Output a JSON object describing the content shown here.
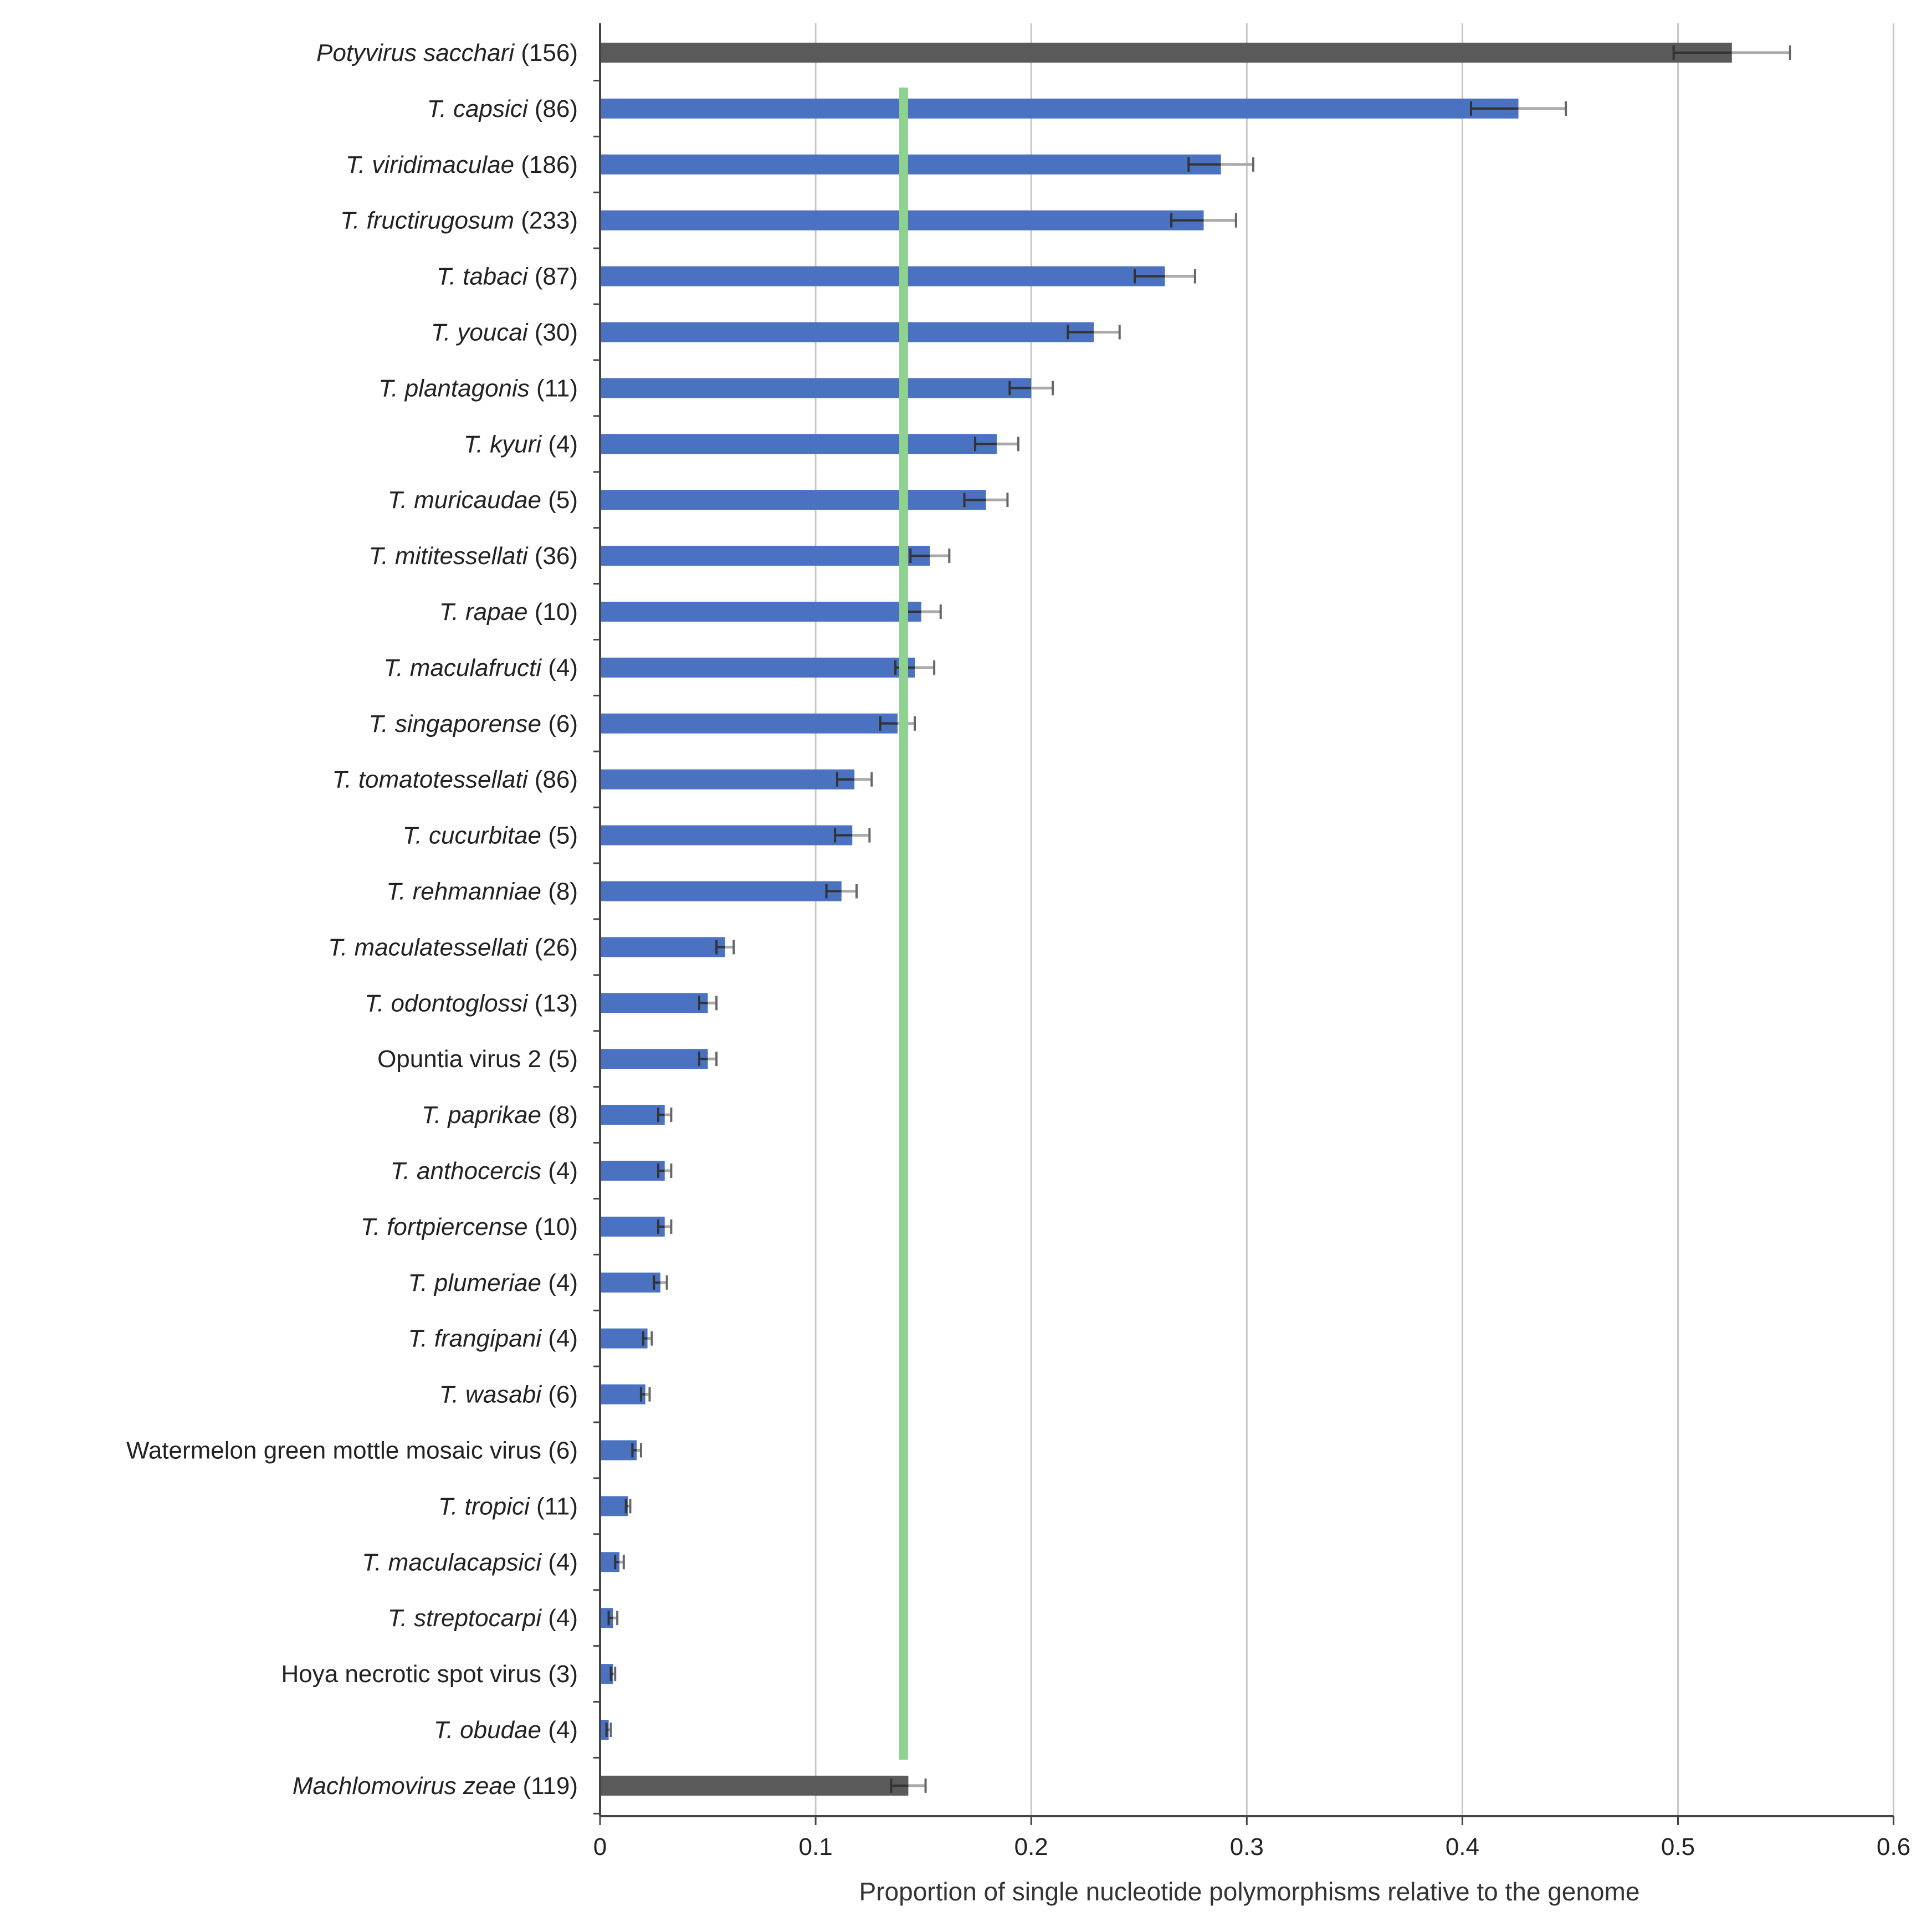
{
  "chart_data": {
    "type": "bar",
    "orientation": "horizontal",
    "xlabel": "Proportion of single nucleotide polymorphisms relative to the genome",
    "ylabel": "",
    "xlim": [
      0,
      0.6
    ],
    "xticks": [
      "0",
      "0.1",
      "0.2",
      "0.3",
      "0.4",
      "0.5",
      "0.6"
    ],
    "grid": "vertical",
    "reference_line": {
      "value": 0.12,
      "color": "#8fd18f"
    },
    "colors": {
      "highlight": "#5a5a5a",
      "default": "#4a72c0",
      "error_dark": "#333333",
      "error_light": "#aaaaaa",
      "grid": "#c8c8c8"
    },
    "categories": [
      {
        "name": "Potyvirus sacchari",
        "count": "(156)",
        "italic": true,
        "group": "highlight"
      },
      {
        "name": "T. capsici",
        "count": "(86)",
        "italic": true,
        "group": "default"
      },
      {
        "name": "T. viridimaculae",
        "count": "(186)",
        "italic": true,
        "group": "default"
      },
      {
        "name": "T. fructirugosum",
        "count": "(233)",
        "italic": true,
        "group": "default"
      },
      {
        "name": "T. tabaci",
        "count": "(87)",
        "italic": true,
        "group": "default"
      },
      {
        "name": "T. youcai",
        "count": "(30)",
        "italic": true,
        "group": "default"
      },
      {
        "name": "T. plantagonis",
        "count": "(11)",
        "italic": true,
        "group": "default"
      },
      {
        "name": "T. kyuri",
        "count": "(4)",
        "italic": true,
        "group": "default"
      },
      {
        "name": "T. muricaudae",
        "count": "(5)",
        "italic": true,
        "group": "default"
      },
      {
        "name": "T. mititessellati",
        "count": "(36)",
        "italic": true,
        "group": "default"
      },
      {
        "name": "T. rapae",
        "count": "(10)",
        "italic": true,
        "group": "default"
      },
      {
        "name": "T. maculafructi",
        "count": "(4)",
        "italic": true,
        "group": "default"
      },
      {
        "name": "T. singaporense",
        "count": "(6)",
        "italic": true,
        "group": "default"
      },
      {
        "name": "T. tomatotessellati",
        "count": "(86)",
        "italic": true,
        "group": "default"
      },
      {
        "name": "T. cucurbitae",
        "count": "(5)",
        "italic": true,
        "group": "default"
      },
      {
        "name": "T. rehmanniae",
        "count": "(8)",
        "italic": true,
        "group": "default"
      },
      {
        "name": "T. maculatessellati",
        "count": "(26)",
        "italic": true,
        "group": "default"
      },
      {
        "name": "T. odontoglossi",
        "count": "(13)",
        "italic": true,
        "group": "default"
      },
      {
        "name": "Opuntia virus 2",
        "count": "(5)",
        "italic": false,
        "group": "default"
      },
      {
        "name": "T. paprikae",
        "count": "(8)",
        "italic": true,
        "group": "default"
      },
      {
        "name": "T. anthocercis",
        "count": "(4)",
        "italic": true,
        "group": "default"
      },
      {
        "name": "T. fortpiercense",
        "count": "(10)",
        "italic": true,
        "group": "default"
      },
      {
        "name": "T. plumeriae",
        "count": "(4)",
        "italic": true,
        "group": "default"
      },
      {
        "name": "T. frangipani",
        "count": "(4)",
        "italic": true,
        "group": "default"
      },
      {
        "name": "T. wasabi",
        "count": "(6)",
        "italic": true,
        "group": "default"
      },
      {
        "name": "Watermelon green mottle mosaic virus",
        "count": "(6)",
        "italic": false,
        "group": "default"
      },
      {
        "name": "T. tropici",
        "count": "(11)",
        "italic": true,
        "group": "default"
      },
      {
        "name": "T. maculacapsici",
        "count": "(4)",
        "italic": true,
        "group": "default"
      },
      {
        "name": "T. streptocarpi",
        "count": "(4)",
        "italic": true,
        "group": "default"
      },
      {
        "name": "Hoya necrotic spot virus",
        "count": "(3)",
        "italic": false,
        "group": "default"
      },
      {
        "name": "T. obudae",
        "count": "(4)",
        "italic": true,
        "group": "default"
      },
      {
        "name": "Machlomovirus zeae",
        "count": "(119)",
        "italic": true,
        "group": "highlight"
      }
    ],
    "values": [
      0.525,
      0.426,
      0.288,
      0.28,
      0.262,
      0.229,
      0.2,
      0.184,
      0.179,
      0.153,
      0.149,
      0.146,
      0.138,
      0.118,
      0.117,
      0.112,
      0.058,
      0.05,
      0.05,
      0.03,
      0.03,
      0.03,
      0.028,
      0.022,
      0.021,
      0.017,
      0.013,
      0.009,
      0.006,
      0.006,
      0.004,
      0.143
    ],
    "errors": [
      0.027,
      0.022,
      0.015,
      0.015,
      0.014,
      0.012,
      0.01,
      0.01,
      0.01,
      0.009,
      0.009,
      0.009,
      0.008,
      0.008,
      0.008,
      0.007,
      0.004,
      0.004,
      0.004,
      0.003,
      0.003,
      0.003,
      0.003,
      0.002,
      0.002,
      0.002,
      0.001,
      0.002,
      0.002,
      0.001,
      0.001,
      0.008
    ]
  }
}
